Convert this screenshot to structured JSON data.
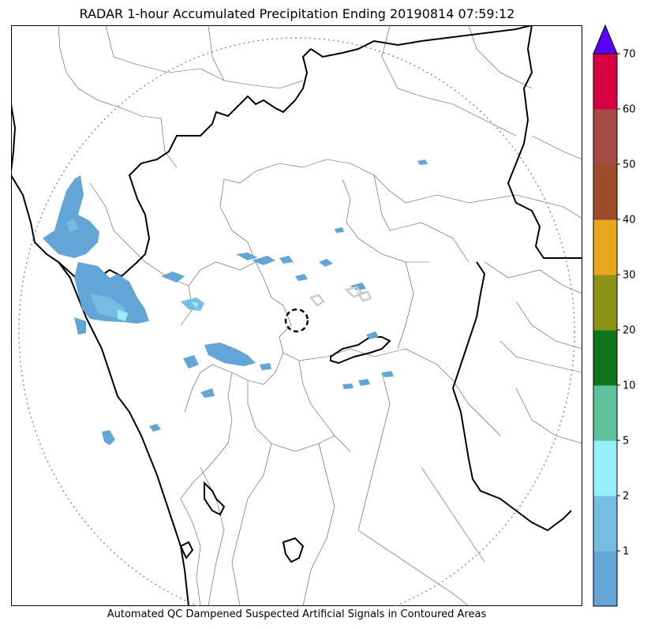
{
  "title": "RADAR 1-hour Accumulated Precipitation Ending 20190814 07:59:12",
  "caption": "Automated QC Dampened Suspected Artificial Signals in Contoured Areas",
  "colors": {
    "coastline": "#000000",
    "district_border": "#555555",
    "range_ring": "#888888",
    "qc_contour": "#cccccc",
    "radar_marker": "#000000"
  },
  "colorbar": {
    "extend_color": "#5a00ff",
    "segments": [
      {
        "from": 0,
        "to": 1,
        "color": "#62a5d6"
      },
      {
        "from": 1,
        "to": 2,
        "color": "#77bde3"
      },
      {
        "from": 2,
        "to": 5,
        "color": "#97eefe"
      },
      {
        "from": 5,
        "to": 10,
        "color": "#5ec39c"
      },
      {
        "from": 10,
        "to": 20,
        "color": "#0d761a"
      },
      {
        "from": 20,
        "to": 30,
        "color": "#8c9314"
      },
      {
        "from": 30,
        "to": 40,
        "color": "#e7a81c"
      },
      {
        "from": 40,
        "to": 50,
        "color": "#9a4d28"
      },
      {
        "from": 50,
        "to": 60,
        "color": "#a64a44"
      },
      {
        "from": 60,
        "to": 70,
        "color": "#d60041"
      }
    ],
    "tick_labels": [
      "1",
      "2",
      "5",
      "10",
      "20",
      "30",
      "40",
      "50",
      "60",
      "70"
    ]
  }
}
